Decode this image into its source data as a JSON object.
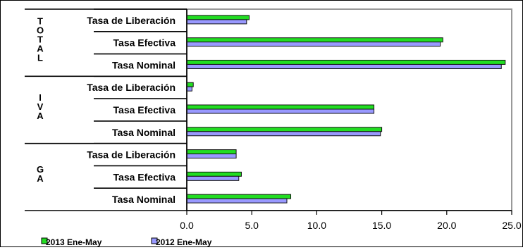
{
  "chart_data": {
    "type": "bar",
    "orientation": "horizontal",
    "groups": [
      {
        "label": "TOTAL",
        "categories": [
          "Tasa de Liberación",
          "Tasa Efectiva",
          "Tasa Nominal"
        ]
      },
      {
        "label": "IVA",
        "categories": [
          "Tasa de Liberación",
          "Tasa Efectiva",
          "Tasa Nominal"
        ]
      },
      {
        "label": "GA",
        "categories": [
          "Tasa de Liberación",
          "Tasa Efectiva",
          "Tasa Nominal"
        ]
      }
    ],
    "series": [
      {
        "name": "2013 Ene-May",
        "color": "#22dd22",
        "values": [
          [
            4.8,
            19.7,
            24.5
          ],
          [
            0.5,
            14.4,
            15.0
          ],
          [
            3.8,
            4.2,
            8.0
          ]
        ]
      },
      {
        "name": "2012 Ene-May",
        "color": "#9999ff",
        "values": [
          [
            4.6,
            19.5,
            24.2
          ],
          [
            0.4,
            14.4,
            14.9
          ],
          [
            3.8,
            4.0,
            7.7
          ]
        ]
      }
    ],
    "xlim": [
      0,
      25
    ],
    "xticks": [
      "0.0",
      "5.0",
      "10.0",
      "15.0",
      "20.0",
      "25.0"
    ],
    "grid": false,
    "legend_position": "bottom-left",
    "title": "",
    "xlabel": "",
    "ylabel": ""
  }
}
